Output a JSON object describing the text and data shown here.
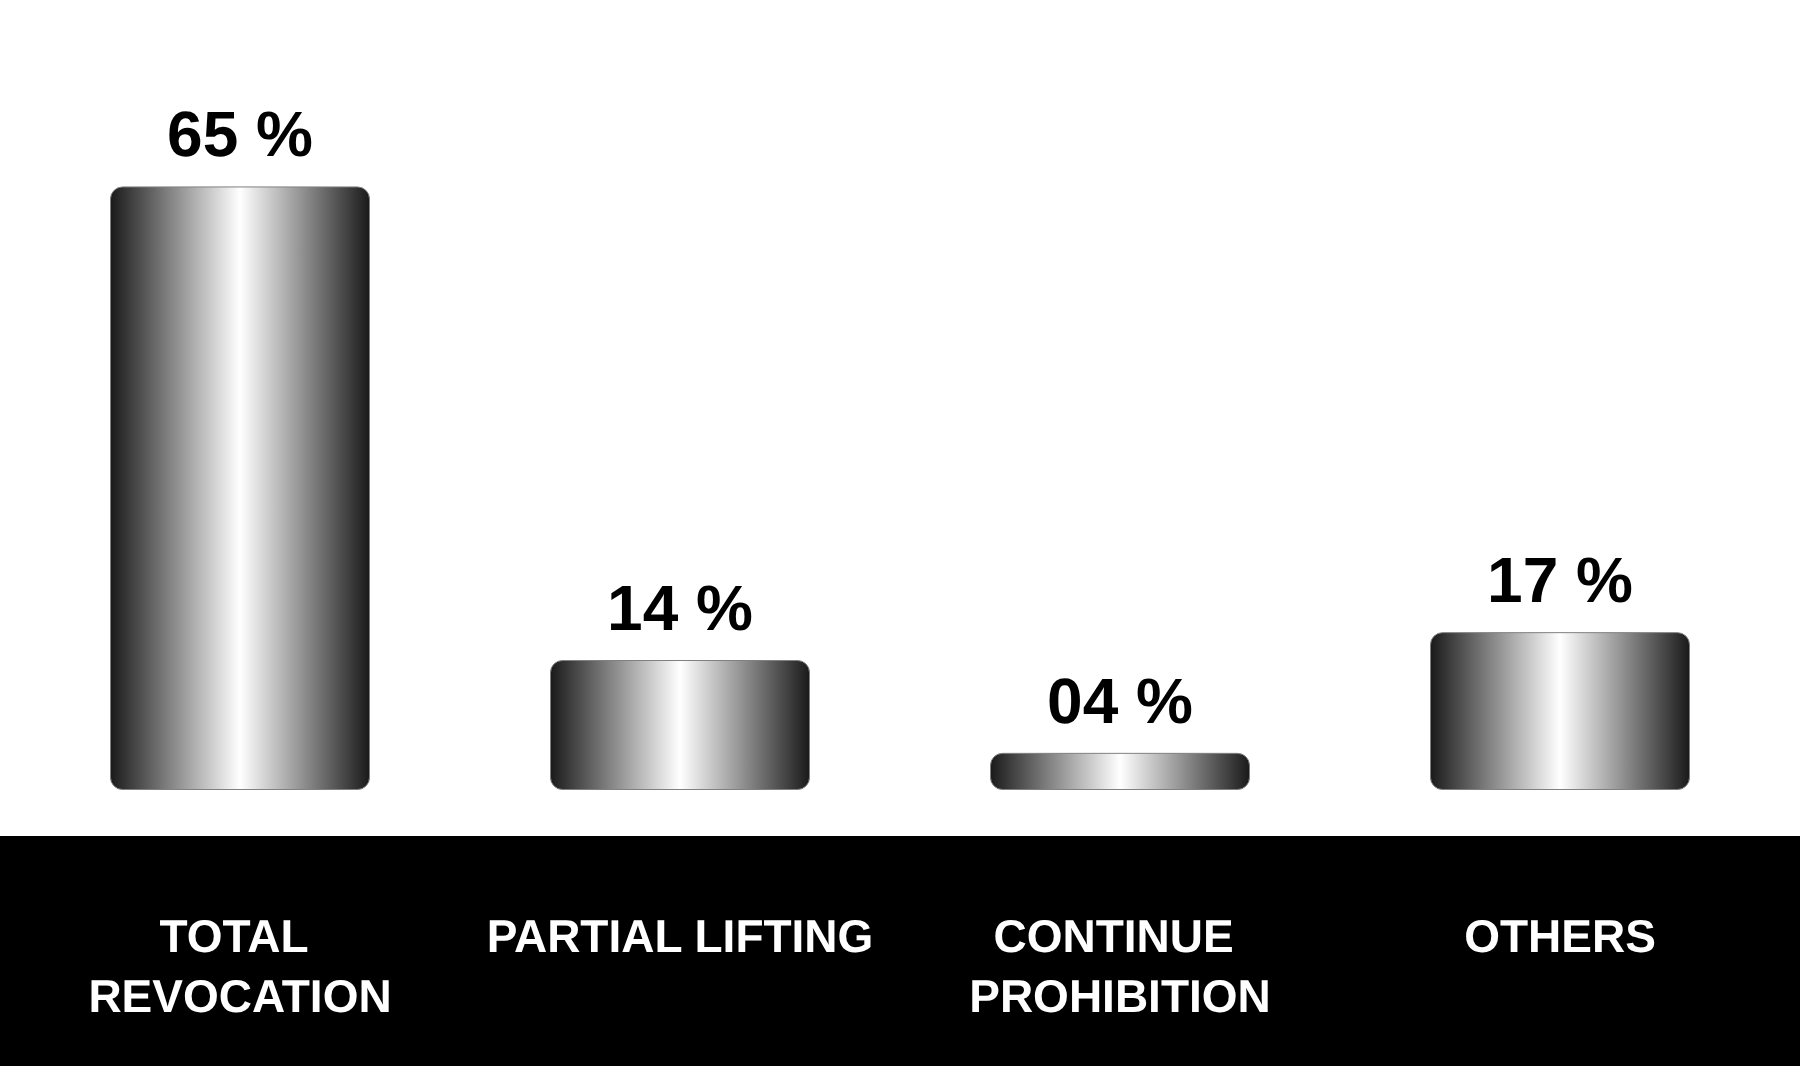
{
  "chart_data": {
    "type": "bar",
    "categories": [
      "TOTAL REVOCATION",
      "PARTIAL LIFTING",
      "CONTINUE PROHIBITION",
      "OTHERS"
    ],
    "values": [
      65,
      14,
      4,
      17
    ],
    "value_labels": [
      "65 %",
      "14 %",
      "04 %",
      "17 %"
    ],
    "color": "#808080"
  }
}
